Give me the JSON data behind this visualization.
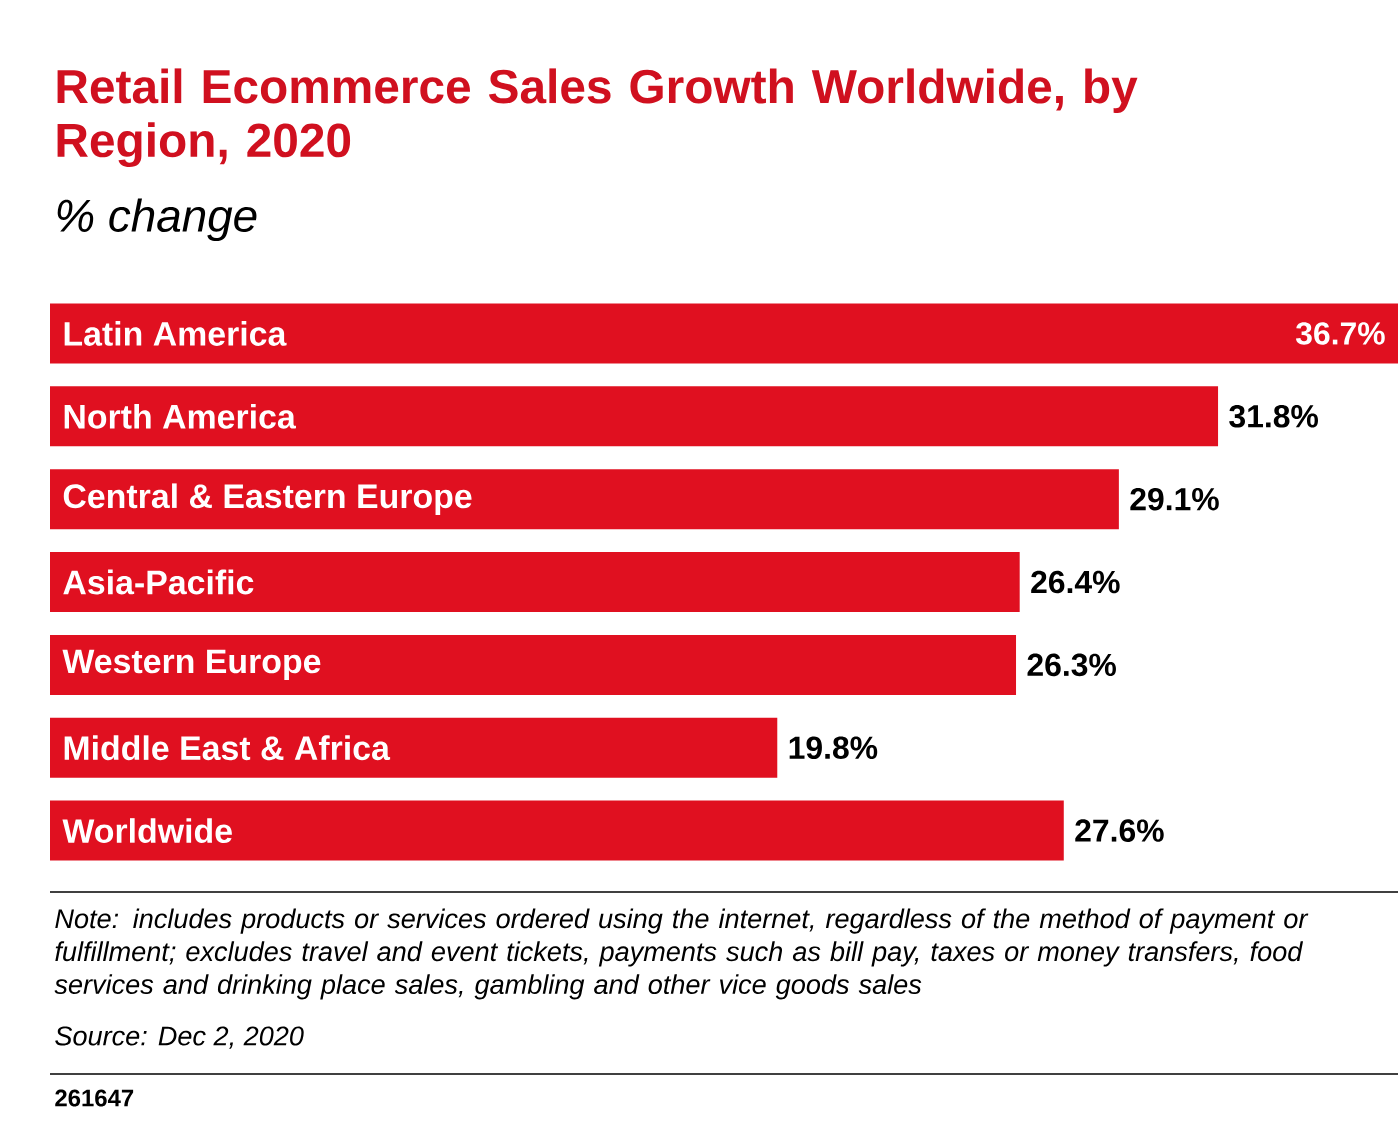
{
  "chart_data": {
    "type": "bar",
    "orientation": "horizontal",
    "title": "Retail Ecommerce Sales Growth Worldwide, by Region, 2020",
    "subtitle": "% change",
    "categories": [
      "Latin America",
      "North America",
      "Central & Eastern Europe",
      "Asia-Pacific",
      "Western Europe",
      "Middle East & Africa",
      "Worldwide"
    ],
    "values": [
      36.7,
      31.8,
      29.1,
      26.4,
      26.3,
      19.8,
      27.6
    ],
    "value_labels": [
      "36.7%",
      "31.8%",
      "29.1%",
      "26.4%",
      "26.3%",
      "19.8%",
      "27.6%"
    ],
    "color": "#e01020",
    "xlim": [
      0,
      36.7
    ],
    "annotations": [
      "Note: includes products or services ordered using the internet, regardless of the method of payment or fulfillment; excludes travel and event tickets, payments such as bill pay, taxes or money transfers, food services and drinking place sales, gambling and other vice goods sales",
      "Source: Dec 2, 2020",
      "261647"
    ]
  }
}
